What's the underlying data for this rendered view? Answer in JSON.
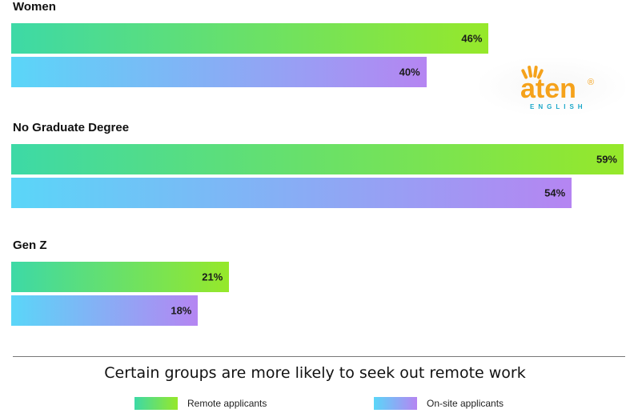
{
  "chart_data": {
    "type": "bar",
    "orientation": "horizontal",
    "categories": [
      "Women",
      "No Graduate Degree",
      "Gen Z"
    ],
    "series": [
      {
        "name": "Remote applicants",
        "values": [
          46,
          59,
          21
        ],
        "labels": [
          "46%",
          "59%",
          "21%"
        ],
        "color_start": "#3dd9a6",
        "color_end": "#96e82a"
      },
      {
        "name": "On-site applicants",
        "values": [
          40,
          54,
          18
        ],
        "labels": [
          "40%",
          "54%",
          "18%"
        ],
        "color_start": "#5ad6f8",
        "color_end": "#b585f2"
      }
    ],
    "title": "Certain groups are more likely to seek out remote work",
    "xlim": [
      0,
      59
    ],
    "grid": false,
    "legend_position": "bottom"
  },
  "logo": {
    "name": "aten",
    "subtitle": "ENGLISH",
    "mark": "®",
    "colors": {
      "orange": "#f5a21b",
      "teal": "#1aa7c9"
    }
  }
}
